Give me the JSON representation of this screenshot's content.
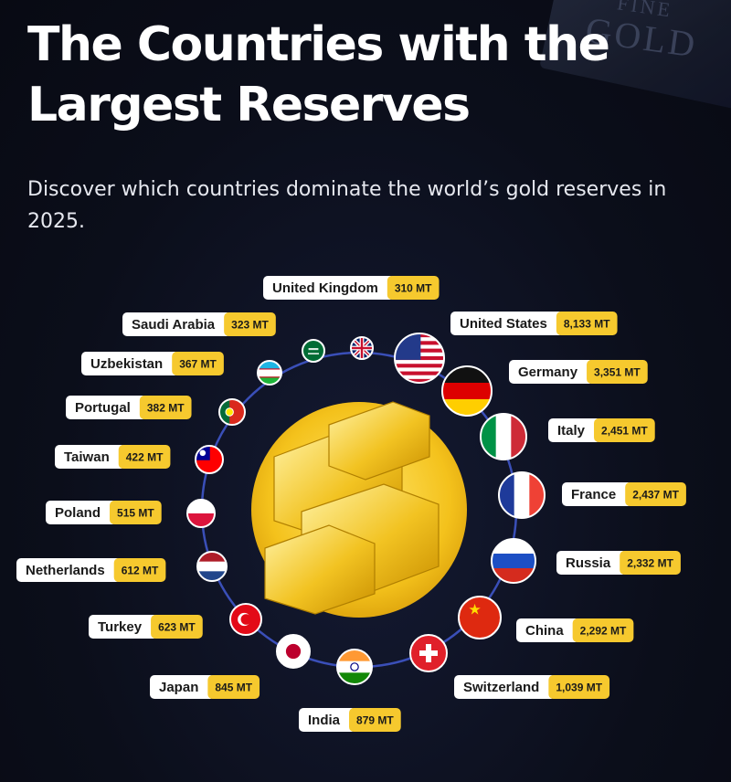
{
  "header": {
    "title": "The Countries with the Largest Reserves",
    "subtitle": "Discover which countries dominate the world’s gold reserves in 2025."
  },
  "background": {
    "bar_text_1": "FINE",
    "bar_text_2": "GOLD"
  },
  "colors": {
    "gold": "#f6c92e",
    "ring": "#3a4fb8",
    "background": "#0b0e1a"
  },
  "chart_data": {
    "type": "radial-labeled-list",
    "title": "The Countries with the Largest Reserves",
    "subtitle": "Discover which countries dominate the world’s gold reserves in 2025.",
    "unit": "MT",
    "entries": [
      {
        "country": "United States",
        "value": 8133,
        "label": "8,133 MT",
        "flag": "us-flag"
      },
      {
        "country": "Germany",
        "value": 3351,
        "label": "3,351 MT",
        "flag": "de-flag"
      },
      {
        "country": "Italy",
        "value": 2451,
        "label": "2,451 MT",
        "flag": "it-flag"
      },
      {
        "country": "France",
        "value": 2437,
        "label": "2,437 MT",
        "flag": "fr-flag"
      },
      {
        "country": "Russia",
        "value": 2332,
        "label": "2,332 MT",
        "flag": "ru-flag"
      },
      {
        "country": "China",
        "value": 2292,
        "label": "2,292 MT",
        "flag": "cn-flag"
      },
      {
        "country": "Switzerland",
        "value": 1039,
        "label": "1,039 MT",
        "flag": "ch-flag"
      },
      {
        "country": "India",
        "value": 879,
        "label": "879 MT",
        "flag": "in-flag"
      },
      {
        "country": "Japan",
        "value": 845,
        "label": "845 MT",
        "flag": "jp-flag"
      },
      {
        "country": "Turkey",
        "value": 623,
        "label": "623 MT",
        "flag": "tr-flag"
      },
      {
        "country": "Netherlands",
        "value": 612,
        "label": "612 MT",
        "flag": "nl-flag"
      },
      {
        "country": "Poland",
        "value": 515,
        "label": "515 MT",
        "flag": "pl-flag"
      },
      {
        "country": "Taiwan",
        "value": 422,
        "label": "422 MT",
        "flag": "tw-flag"
      },
      {
        "country": "Portugal",
        "value": 382,
        "label": "382 MT",
        "flag": "pt-flag"
      },
      {
        "country": "Uzbekistan",
        "value": 367,
        "label": "367 MT",
        "flag": "uz-flag"
      },
      {
        "country": "Saudi Arabia",
        "value": 323,
        "label": "323 MT",
        "flag": "sa-flag"
      },
      {
        "country": "United Kingdom",
        "value": 310,
        "label": "310 MT",
        "flag": "uk-flag"
      }
    ]
  }
}
